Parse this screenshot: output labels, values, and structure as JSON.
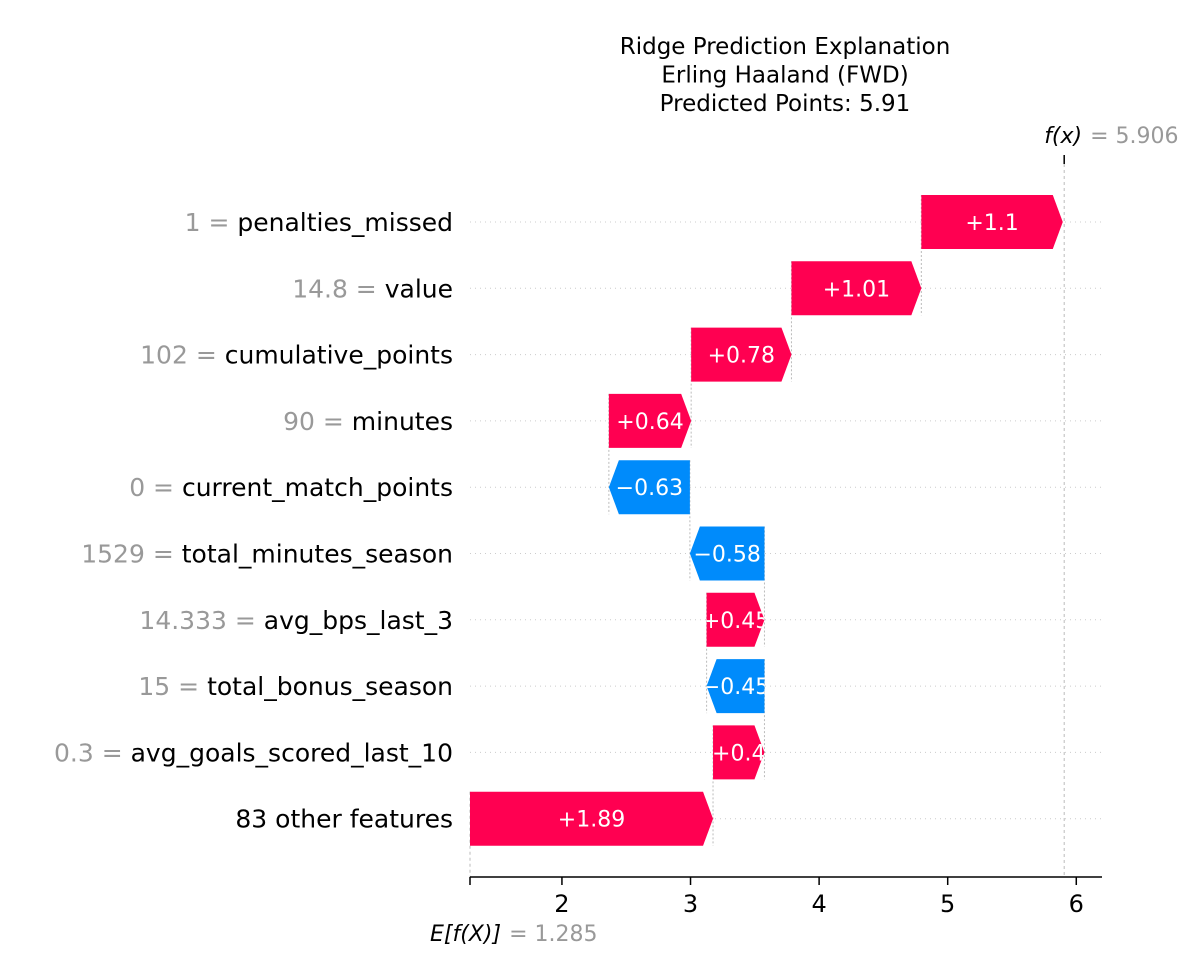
{
  "chart_data": {
    "type": "waterfall",
    "title_lines": [
      "Ridge Prediction Explanation",
      "Erling Haaland (FWD)",
      "Predicted Points: 5.91"
    ],
    "base_value": 1.285,
    "output_value": 5.906,
    "fx_label": "f(x)",
    "fx_value_text": "= 5.906",
    "efx_label": "E[f(X)]",
    "efx_value_text": "= 1.285",
    "xlim": [
      1.285,
      6.2
    ],
    "xticks": [
      2,
      3,
      4,
      5,
      6
    ],
    "xtick_labels": [
      "2",
      "3",
      "4",
      "5",
      "6"
    ],
    "features": [
      {
        "value_text": "1 =",
        "name": "penalties_missed",
        "contribution": 1.1,
        "label": "+1.1"
      },
      {
        "value_text": "14.8 =",
        "name": "value",
        "contribution": 1.01,
        "label": "+1.01"
      },
      {
        "value_text": "102 =",
        "name": "cumulative_points",
        "contribution": 0.78,
        "label": "+0.78"
      },
      {
        "value_text": "90 =",
        "name": "minutes",
        "contribution": 0.64,
        "label": "+0.64"
      },
      {
        "value_text": "0 =",
        "name": "current_match_points",
        "contribution": -0.63,
        "label": "−0.63"
      },
      {
        "value_text": "1529 =",
        "name": "total_minutes_season",
        "contribution": -0.58,
        "label": "−0.58"
      },
      {
        "value_text": "14.333 =",
        "name": "avg_bps_last_3",
        "contribution": 0.45,
        "label": "+0.45"
      },
      {
        "value_text": "15 =",
        "name": "total_bonus_season",
        "contribution": -0.45,
        "label": "−0.45"
      },
      {
        "value_text": "0.3 =",
        "name": "avg_goals_scored_last_10",
        "contribution": 0.4,
        "label": "+0.4"
      },
      {
        "value_text": "",
        "name": "83 other features",
        "contribution": 1.89,
        "label": "+1.89"
      }
    ],
    "colors": {
      "positive": "#ff0051",
      "negative": "#008bfb",
      "value_text": "#999999",
      "feature_text": "#000000",
      "bar_label": "#ffffff",
      "grid": "#cccccc"
    }
  }
}
